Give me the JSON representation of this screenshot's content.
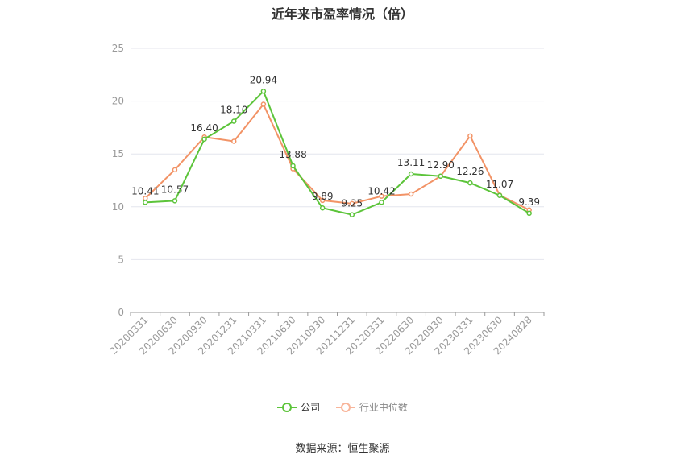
{
  "title": "近年来市盈率情况（倍）",
  "source": "数据来源：恒生聚源",
  "chart_data": {
    "type": "line",
    "categories": [
      "20200331",
      "20200630",
      "20200930",
      "20201231",
      "20210331",
      "20210630",
      "20210930",
      "20211231",
      "20220331",
      "20220630",
      "20220930",
      "20230331",
      "20230630",
      "20240828"
    ],
    "series": [
      {
        "name": "公司",
        "color": "#5cc43a",
        "values": [
          10.41,
          10.57,
          16.4,
          18.1,
          20.94,
          13.88,
          9.89,
          9.25,
          10.42,
          13.11,
          12.9,
          12.26,
          11.07,
          9.39
        ],
        "labels": [
          "10.41",
          "10.57",
          "16.40",
          "18.10",
          "20.94",
          "13.88",
          "9.89",
          "9.25",
          "10.42",
          "13.11",
          "12.90",
          "12.26",
          "11.07",
          "9.39"
        ]
      },
      {
        "name": "行业中位数",
        "color": "#f29366",
        "values": [
          10.8,
          13.5,
          16.6,
          16.2,
          19.7,
          13.6,
          10.6,
          10.3,
          11.0,
          11.2,
          12.9,
          16.7,
          11.1,
          9.7
        ]
      }
    ],
    "ylim": [
      0,
      25
    ],
    "yticks": [
      0,
      5,
      10,
      15,
      20,
      25
    ],
    "grid": true,
    "legend_position": "bottom"
  }
}
